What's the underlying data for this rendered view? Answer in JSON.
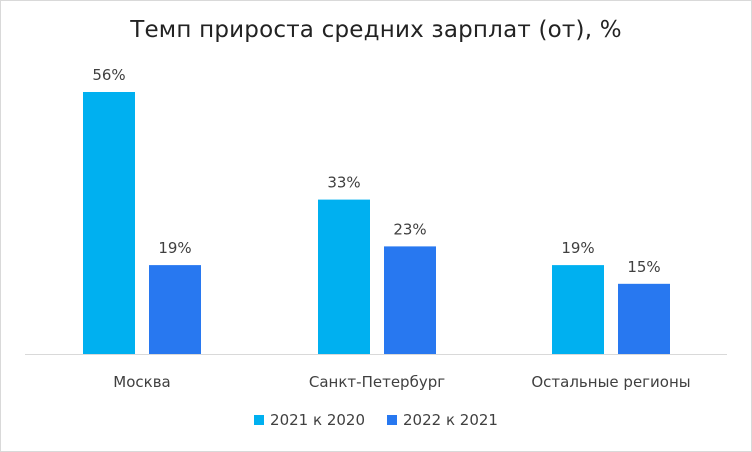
{
  "chart_data": {
    "type": "bar",
    "title": "Темп прироста средних зарплат (от), %",
    "xlabel": "",
    "ylabel": "",
    "categories": [
      "Москва",
      "Санкт-Петербург",
      "Остальные регионы"
    ],
    "series": [
      {
        "name": "2021 к 2020",
        "values": [
          56,
          33,
          19
        ],
        "labels": [
          "56%",
          "33%",
          "19%"
        ],
        "color": "#00b0f0"
      },
      {
        "name": "2022 к 2021",
        "values": [
          19,
          23,
          15
        ],
        "labels": [
          "19%",
          "23%",
          "15%"
        ],
        "color": "#2878f0"
      }
    ],
    "ylim": [
      0,
      60
    ],
    "grid": false,
    "legend_position": "bottom"
  }
}
